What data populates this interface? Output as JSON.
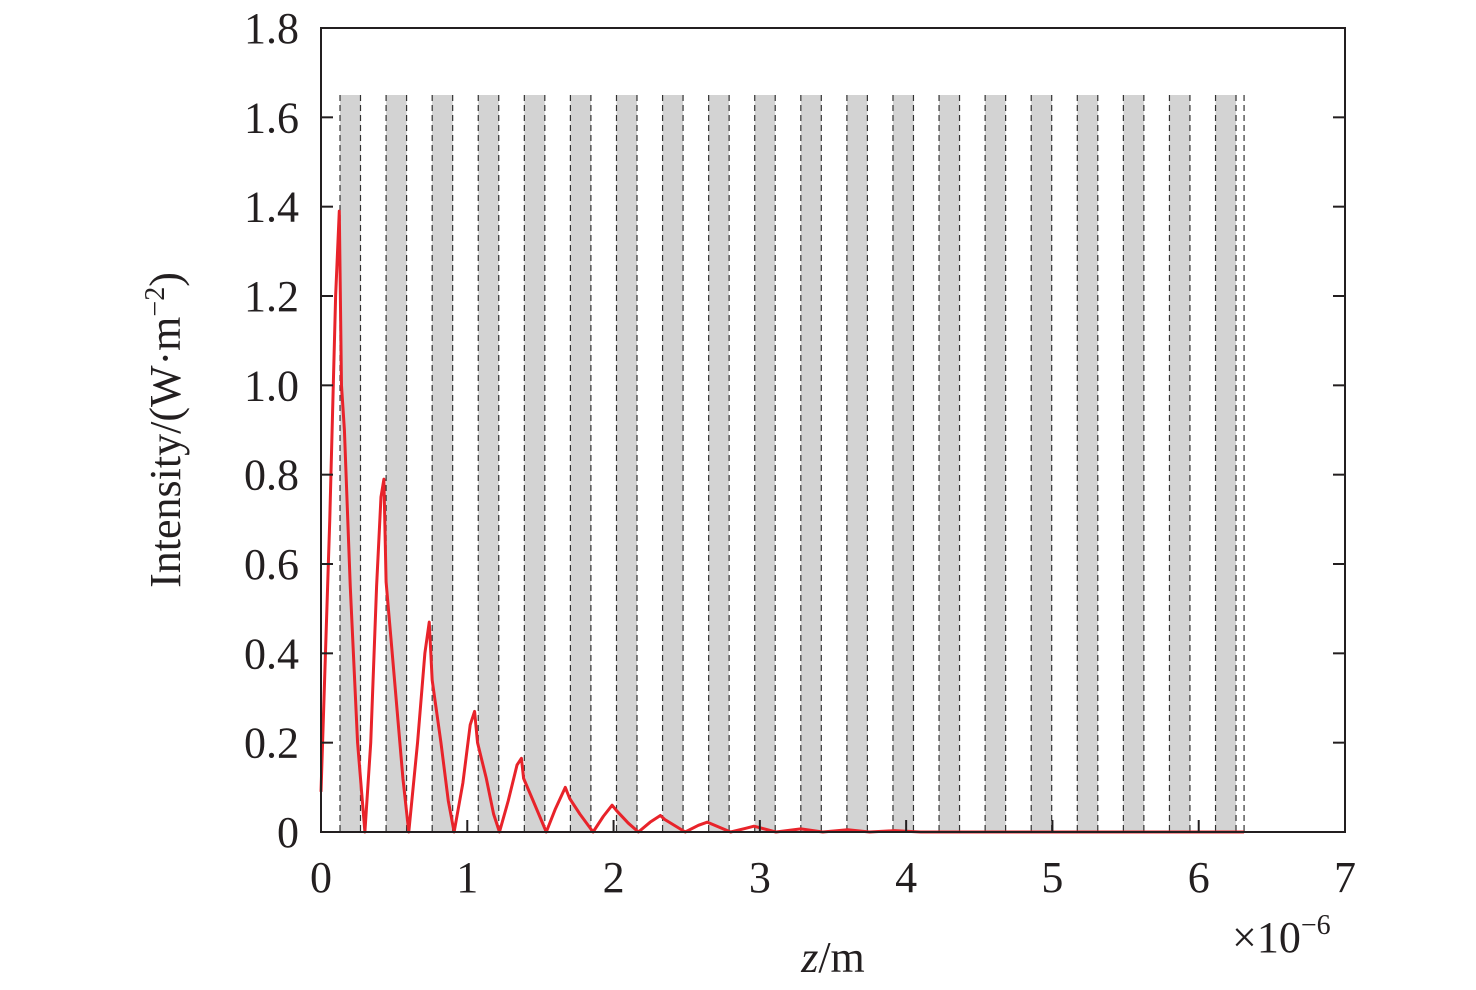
{
  "chart_data": {
    "type": "line",
    "ylabel": [
      "Intensity/(W·m",
      "−2",
      ")"
    ],
    "xlabel": [
      "z",
      "/m"
    ],
    "x_multiplier": [
      "×10",
      "−6"
    ],
    "xlim": [
      0,
      7
    ],
    "ylim": [
      0,
      1.8
    ],
    "xticks": [
      0,
      1,
      2,
      3,
      4,
      5,
      6,
      7
    ],
    "yticks": [
      0,
      0.2,
      0.4,
      0.6,
      0.8,
      {
        "value": 1,
        "label": "1.0"
      },
      1.2,
      1.4,
      1.6,
      1.8
    ],
    "layers": [
      [
        0.13,
        0.27
      ],
      [
        0.445,
        0.585
      ],
      [
        0.76,
        0.9
      ],
      [
        1.075,
        1.215
      ],
      [
        1.39,
        1.53
      ],
      [
        1.705,
        1.845
      ],
      [
        2.02,
        2.16
      ],
      [
        2.335,
        2.475
      ],
      [
        2.65,
        2.79
      ],
      [
        2.965,
        3.105
      ],
      [
        3.28,
        3.42
      ],
      [
        3.595,
        3.735
      ],
      [
        3.91,
        4.05
      ],
      [
        4.225,
        4.365
      ],
      [
        4.54,
        4.68
      ],
      [
        4.855,
        4.995
      ],
      [
        5.17,
        5.31
      ],
      [
        5.485,
        5.625
      ],
      [
        5.8,
        5.94
      ],
      [
        6.115,
        6.255
      ]
    ],
    "layer_top": 1.65,
    "layer_end": 6.31,
    "layer_color": "#d3d3d3",
    "series": [
      {
        "color": "#e8232a",
        "x": [
          0,
          0.06,
          0.1,
          0.125,
          0.14,
          0.16,
          0.2,
          0.25,
          0.3,
          0.34,
          0.38,
          0.41,
          0.43,
          0.445,
          0.5,
          0.56,
          0.6,
          0.66,
          0.71,
          0.74,
          0.76,
          0.82,
          0.87,
          0.91,
          0.97,
          1.02,
          1.05,
          1.07,
          1.13,
          1.18,
          1.22,
          1.28,
          1.34,
          1.37,
          1.385,
          1.45,
          1.54,
          1.6,
          1.67,
          1.7,
          1.77,
          1.86,
          1.93,
          1.99,
          2.02,
          2.1,
          2.17,
          2.25,
          2.32,
          2.35,
          2.49,
          2.58,
          2.64,
          2.8,
          2.9,
          2.96,
          3.11,
          3.28,
          3.43,
          3.6,
          3.75,
          3.92,
          4.1,
          6.31
        ],
        "values": [
          0.09,
          0.7,
          1.2,
          1.39,
          1.0,
          0.9,
          0.55,
          0.2,
          0,
          0.2,
          0.55,
          0.75,
          0.79,
          0.56,
          0.35,
          0.12,
          0,
          0.2,
          0.4,
          0.47,
          0.34,
          0.2,
          0.07,
          0,
          0.11,
          0.24,
          0.27,
          0.2,
          0.12,
          0.04,
          0,
          0.07,
          0.15,
          0.165,
          0.12,
          0.07,
          0,
          0.05,
          0.1,
          0.075,
          0.04,
          0,
          0.035,
          0.06,
          0.048,
          0.02,
          0,
          0.022,
          0.037,
          0.028,
          0,
          0.015,
          0.022,
          0,
          0.008,
          0.013,
          0,
          0.007,
          0,
          0.005,
          0,
          0.003,
          0,
          0
        ]
      }
    ]
  }
}
